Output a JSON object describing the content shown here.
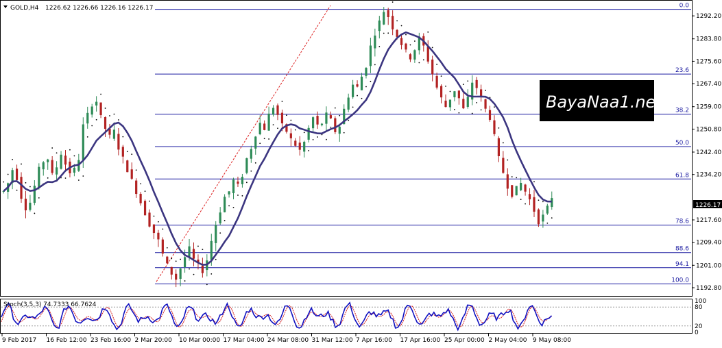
{
  "chart_data": {
    "type": "candlestick",
    "header": {
      "symbol": "GOLD,H4",
      "ohlc": "1226.62 1226.66 1226.16 1226.17"
    },
    "current_price": "1226.17",
    "ylim": [
      1189.8,
      1297.5
    ],
    "y_ticks": [
      "1292.20",
      "1283.80",
      "1275.60",
      "1267.40",
      "1259.00",
      "1250.80",
      "1242.40",
      "1234.20",
      "1217.60",
      "1209.40",
      "1201.00",
      "1192.80"
    ],
    "x_ticks": [
      "9 Feb 2017",
      "16 Feb 12:00",
      "23 Feb 16:00",
      "2 Mar 20:00",
      "10 Mar 00:00",
      "17 Mar 04:00",
      "24 Mar 08:00",
      "31 Mar 12:00",
      "7 Apr 16:00",
      "17 Apr 16:00",
      "25 Apr 00:00",
      "2 May 04:00",
      "9 May 08:00"
    ],
    "price_path": [
      1228,
      1231,
      1236,
      1233,
      1226,
      1222,
      1224,
      1230,
      1236,
      1239,
      1240,
      1234,
      1237,
      1242,
      1238,
      1235,
      1236,
      1240,
      1252,
      1256,
      1260,
      1261,
      1255,
      1251,
      1248,
      1250,
      1244,
      1240,
      1236,
      1232,
      1228,
      1224,
      1220,
      1216,
      1213,
      1210,
      1205,
      1201,
      1198,
      1196,
      1200,
      1204,
      1207,
      1203,
      1201,
      1199,
      1203,
      1210,
      1216,
      1221,
      1226,
      1228,
      1232,
      1230,
      1234,
      1240,
      1244,
      1249,
      1253,
      1251,
      1256,
      1259,
      1256,
      1252,
      1250,
      1247,
      1245,
      1243,
      1246,
      1251,
      1255,
      1252,
      1253,
      1256,
      1254,
      1250,
      1252,
      1258,
      1263,
      1267,
      1266,
      1270,
      1274,
      1281,
      1286,
      1290,
      1294,
      1292,
      1288,
      1285,
      1282,
      1279,
      1277,
      1280,
      1284,
      1281,
      1276,
      1271,
      1266,
      1262,
      1259,
      1262,
      1265,
      1262,
      1258,
      1262,
      1268,
      1266,
      1262,
      1258,
      1255,
      1248,
      1240,
      1235,
      1230,
      1227,
      1229,
      1231,
      1228,
      1225,
      1221,
      1217,
      1219,
      1222,
      1226
    ],
    "fibonacci": {
      "high": 1294.6,
      "low": 1194.2,
      "levels": [
        {
          "label": "0.0",
          "ratio": 0.0
        },
        {
          "label": "23.6",
          "ratio": 0.236
        },
        {
          "label": "38.2",
          "ratio": 0.382
        },
        {
          "label": "50.0",
          "ratio": 0.5
        },
        {
          "label": "61.8",
          "ratio": 0.618
        },
        {
          "label": "78.6",
          "ratio": 0.786
        },
        {
          "label": "88.6",
          "ratio": 0.886
        },
        {
          "label": "94.1",
          "ratio": 0.941
        },
        {
          "label": "100.0",
          "ratio": 1.0
        }
      ]
    },
    "stochastic": {
      "label": "Stoch(3,5,3) 74.7333 66.7624",
      "levels": [
        "100",
        "80",
        "20",
        "0"
      ]
    },
    "legend": "none",
    "grid": false
  },
  "watermark": {
    "text": "BayaNaa1.ne",
    "colors": {
      "bg": "#000000",
      "fg": "#ffffff"
    }
  },
  "colors": {
    "candle": "#2e8b57",
    "candle_down": "#b22222",
    "ma": "#3b3580",
    "fib": "#1a1aa0",
    "stoch": "#1010c0",
    "signal": "#d21a1a"
  }
}
